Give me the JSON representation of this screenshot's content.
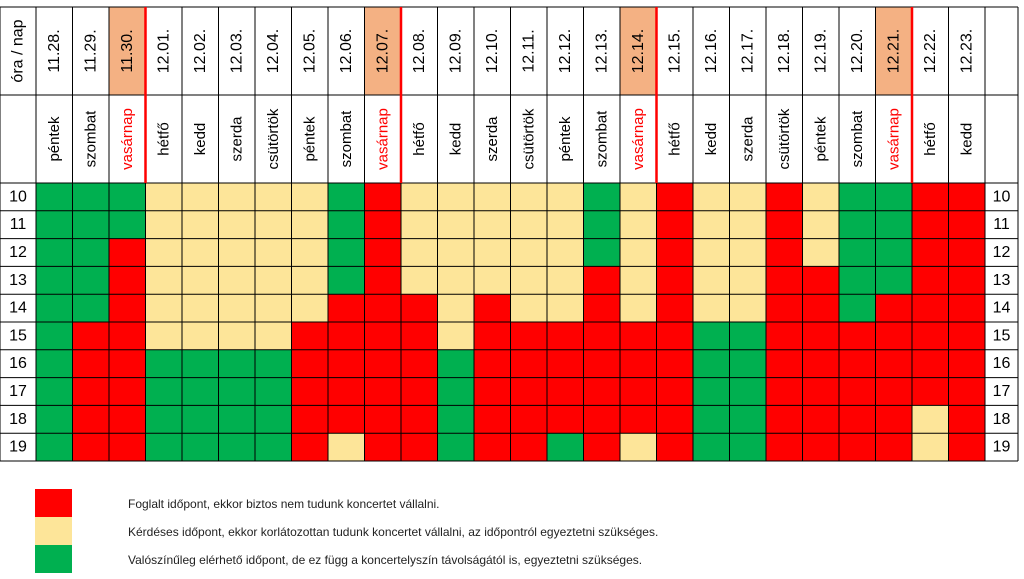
{
  "chart_data": {
    "type": "heatmap",
    "corner_label": "óra / nap",
    "colors": {
      "R": "#ff0000",
      "Y": "#fde599",
      "G": "#00b050",
      "highlight": "#f4b183",
      "sunday_text": "#ff0000",
      "grid": "#000000"
    },
    "categories": [
      "11.28.",
      "11.29.",
      "11.30.",
      "12.01.",
      "12.02.",
      "12.03.",
      "12.04.",
      "12.05.",
      "12.06.",
      "12.07.",
      "12.08.",
      "12.09.",
      "12.10.",
      "12.11.",
      "12.12.",
      "12.13.",
      "12.14.",
      "12.15.",
      "12.16.",
      "12.17.",
      "12.18.",
      "12.19.",
      "12.20.",
      "12.21.",
      "12.22.",
      "12.23."
    ],
    "weekdays": [
      "péntek",
      "szombat",
      "vasárnap",
      "hétfő",
      "kedd",
      "szerda",
      "csütörtök",
      "péntek",
      "szombat",
      "vasárnap",
      "hétfő",
      "kedd",
      "szerda",
      "csütörtök",
      "péntek",
      "szombat",
      "vasárnap",
      "hétfő",
      "kedd",
      "szerda",
      "csütörtök",
      "péntek",
      "szombat",
      "vasárnap",
      "hétfő",
      "kedd"
    ],
    "highlighted_columns": [
      2,
      9,
      16,
      23
    ],
    "hours": [
      "10",
      "11",
      "12",
      "13",
      "14",
      "15",
      "16",
      "17",
      "18",
      "19"
    ],
    "status_rows": [
      [
        "G",
        "G",
        "G",
        "Y",
        "Y",
        "Y",
        "Y",
        "Y",
        "G",
        "R",
        "Y",
        "Y",
        "Y",
        "Y",
        "Y",
        "G",
        "Y",
        "R",
        "Y",
        "Y",
        "R",
        "Y",
        "G",
        "G",
        "R",
        "R"
      ],
      [
        "G",
        "G",
        "G",
        "Y",
        "Y",
        "Y",
        "Y",
        "Y",
        "G",
        "R",
        "Y",
        "Y",
        "Y",
        "Y",
        "Y",
        "G",
        "Y",
        "R",
        "Y",
        "Y",
        "R",
        "Y",
        "G",
        "G",
        "R",
        "R"
      ],
      [
        "G",
        "G",
        "R",
        "Y",
        "Y",
        "Y",
        "Y",
        "Y",
        "G",
        "R",
        "Y",
        "Y",
        "Y",
        "Y",
        "Y",
        "G",
        "Y",
        "R",
        "Y",
        "Y",
        "R",
        "Y",
        "G",
        "G",
        "R",
        "R"
      ],
      [
        "G",
        "G",
        "R",
        "Y",
        "Y",
        "Y",
        "Y",
        "Y",
        "G",
        "R",
        "Y",
        "Y",
        "Y",
        "Y",
        "Y",
        "R",
        "Y",
        "R",
        "Y",
        "Y",
        "R",
        "R",
        "G",
        "G",
        "R",
        "R"
      ],
      [
        "G",
        "G",
        "R",
        "Y",
        "Y",
        "Y",
        "Y",
        "Y",
        "R",
        "R",
        "R",
        "Y",
        "R",
        "Y",
        "Y",
        "R",
        "Y",
        "R",
        "Y",
        "Y",
        "R",
        "R",
        "G",
        "R",
        "R",
        "R"
      ],
      [
        "G",
        "R",
        "R",
        "Y",
        "Y",
        "Y",
        "Y",
        "R",
        "R",
        "R",
        "R",
        "Y",
        "R",
        "R",
        "R",
        "R",
        "R",
        "R",
        "G",
        "G",
        "R",
        "R",
        "R",
        "R",
        "R",
        "R"
      ],
      [
        "G",
        "R",
        "R",
        "G",
        "G",
        "G",
        "G",
        "R",
        "R",
        "R",
        "R",
        "G",
        "R",
        "R",
        "R",
        "R",
        "R",
        "R",
        "G",
        "G",
        "R",
        "R",
        "R",
        "R",
        "R",
        "R"
      ],
      [
        "G",
        "R",
        "R",
        "G",
        "G",
        "G",
        "G",
        "R",
        "R",
        "R",
        "R",
        "G",
        "R",
        "R",
        "R",
        "R",
        "R",
        "R",
        "G",
        "G",
        "R",
        "R",
        "R",
        "R",
        "R",
        "R"
      ],
      [
        "G",
        "R",
        "R",
        "G",
        "G",
        "G",
        "G",
        "R",
        "R",
        "R",
        "R",
        "G",
        "R",
        "R",
        "R",
        "R",
        "R",
        "R",
        "G",
        "G",
        "R",
        "R",
        "R",
        "R",
        "Y",
        "R"
      ],
      [
        "G",
        "R",
        "R",
        "G",
        "G",
        "G",
        "G",
        "R",
        "Y",
        "R",
        "R",
        "G",
        "R",
        "R",
        "G",
        "R",
        "Y",
        "R",
        "G",
        "G",
        "R",
        "R",
        "R",
        "R",
        "Y",
        "R"
      ]
    ]
  },
  "legend": [
    {
      "key": "R",
      "color": "#ff0000",
      "label": "Foglalt időpont, ekkor biztos nem tudunk koncertet vállalni."
    },
    {
      "key": "Y",
      "color": "#fde599",
      "label": "Kérdéses időpont, ekkor korlátozottan tudunk koncertet vállalni, az időpontról egyeztetni szükséges."
    },
    {
      "key": "G",
      "color": "#00b050",
      "label": "Valószínűleg elérhető időpont, de ez függ a koncertelyszín távolságától is, egyeztetni szükséges."
    }
  ]
}
